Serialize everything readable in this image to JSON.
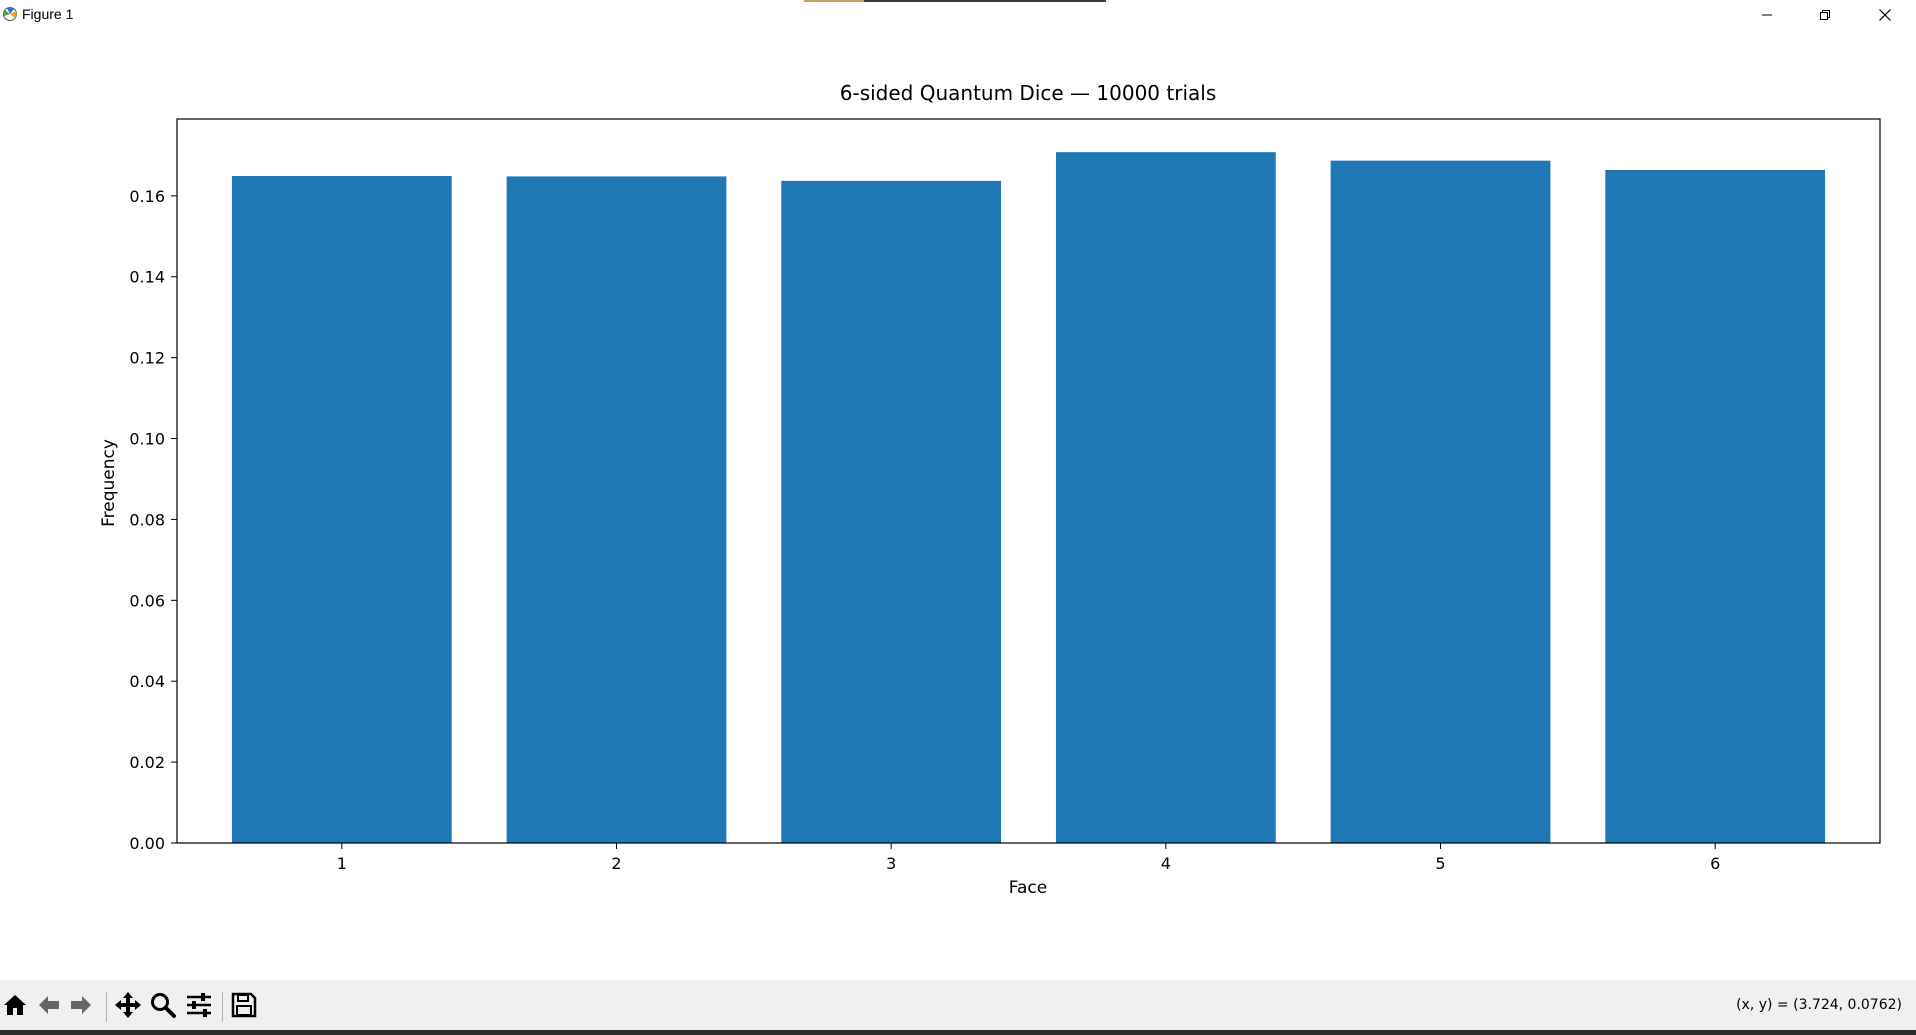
{
  "window": {
    "title": "Figure 1",
    "icons": {
      "app": "matplotlib-icon",
      "minimize": "minimize-icon",
      "maximize": "restore-icon",
      "close": "close-icon"
    }
  },
  "toolbar": {
    "items": [
      {
        "name": "home",
        "icon": "home-icon"
      },
      {
        "name": "back",
        "icon": "arrow-left-icon"
      },
      {
        "name": "forward",
        "icon": "arrow-right-icon"
      },
      {
        "name": "pan",
        "icon": "move-icon"
      },
      {
        "name": "zoom",
        "icon": "magnifier-icon"
      },
      {
        "name": "configure",
        "icon": "sliders-icon"
      },
      {
        "name": "save",
        "icon": "floppy-disk-icon"
      }
    ],
    "coords_text": "(x, y) = (3.724, 0.0762)"
  },
  "chart_data": {
    "type": "bar",
    "title": "6-sided Quantum Dice — 10000 trials",
    "xlabel": "Face",
    "ylabel": "Frequency",
    "categories": [
      "1",
      "2",
      "3",
      "4",
      "5",
      "6"
    ],
    "values": [
      0.1649,
      0.1648,
      0.1637,
      0.1708,
      0.1687,
      0.1664
    ],
    "ylim": [
      0,
      0.179
    ],
    "yticks": [
      "0.00",
      "0.02",
      "0.04",
      "0.06",
      "0.08",
      "0.10",
      "0.12",
      "0.14",
      "0.16"
    ],
    "bar_color": "#1f77b4",
    "grid": false,
    "legend": "none"
  }
}
